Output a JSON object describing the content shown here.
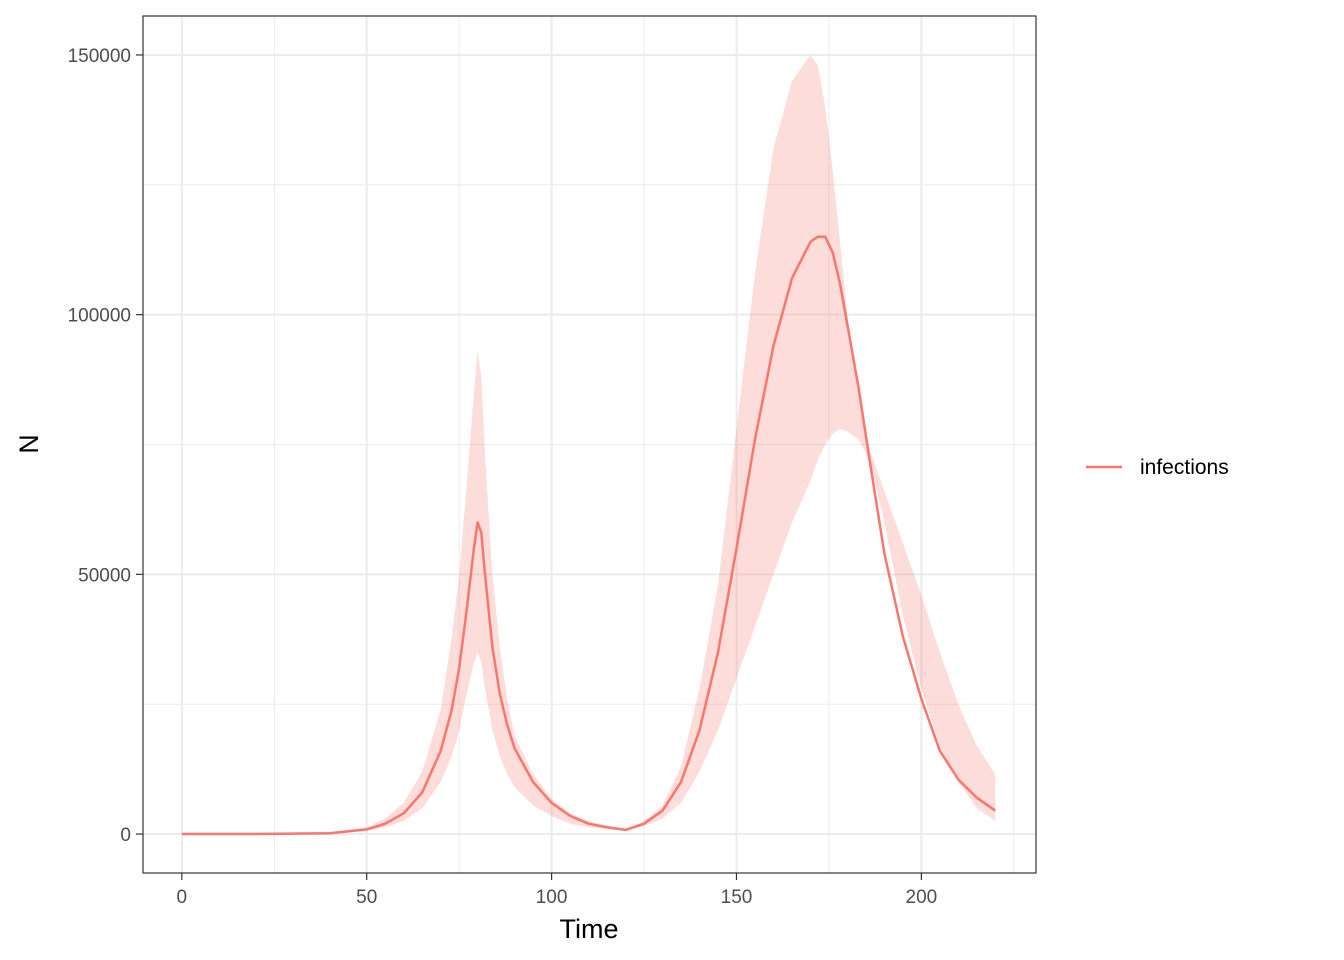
{
  "chart_data": {
    "type": "line",
    "xlabel": "Time",
    "ylabel": "N",
    "xlim": [
      -10.5,
      231
    ],
    "ylim": [
      -7500,
      157500
    ],
    "x_ticks": [
      0,
      50,
      100,
      150,
      200
    ],
    "x_tick_labels": [
      "0",
      "50",
      "100",
      "150",
      "200"
    ],
    "y_ticks": [
      0,
      50000,
      100000,
      150000
    ],
    "y_tick_labels": [
      "0",
      "50000",
      "100000",
      "150000"
    ],
    "grid": true,
    "legend_position": "right",
    "series": [
      {
        "name": "infections",
        "color": "#F8766D",
        "ribbon_color": "#F8766D",
        "x": [
          0,
          20,
          40,
          50,
          55,
          60,
          65,
          70,
          73,
          75,
          77,
          79,
          80,
          81,
          82,
          84,
          86,
          88,
          90,
          95,
          100,
          105,
          110,
          115,
          120,
          125,
          130,
          135,
          140,
          145,
          150,
          155,
          160,
          165,
          170,
          172,
          174,
          176,
          178,
          180,
          183,
          186,
          190,
          195,
          200,
          205,
          210,
          215,
          220
        ],
        "y": [
          0,
          0,
          150,
          900,
          2000,
          4000,
          8000,
          16000,
          24000,
          32000,
          43000,
          55000,
          60000,
          58000,
          50000,
          36000,
          27000,
          21000,
          16500,
          10000,
          6000,
          3500,
          2000,
          1300,
          800,
          2000,
          4500,
          10000,
          20000,
          35000,
          55000,
          76000,
          94000,
          107000,
          114000,
          115000,
          115000,
          112000,
          106000,
          98000,
          86000,
          72000,
          54000,
          38000,
          26000,
          16000,
          10500,
          7000,
          4500
        ],
        "lower": [
          0,
          0,
          100,
          600,
          1300,
          2500,
          5000,
          10000,
          15000,
          20000,
          27000,
          33000,
          35000,
          33000,
          28000,
          20000,
          15000,
          11500,
          9000,
          5500,
          3500,
          2000,
          1300,
          900,
          700,
          1500,
          3000,
          6000,
          12000,
          20000,
          30000,
          40000,
          50000,
          60000,
          68000,
          72000,
          75000,
          77000,
          78000,
          77500,
          76000,
          72000,
          60000,
          42000,
          28000,
          17000,
          10000,
          5000,
          2500
        ],
        "upper": [
          0,
          0,
          200,
          1300,
          3000,
          6000,
          12000,
          24000,
          38000,
          50000,
          67000,
          85000,
          93000,
          88000,
          73000,
          50000,
          36000,
          26000,
          19000,
          11500,
          6800,
          4000,
          2500,
          1600,
          900,
          2500,
          5500,
          13000,
          28000,
          48000,
          78000,
          108000,
          132000,
          145000,
          150000,
          148000,
          140000,
          128000,
          114000,
          100000,
          86000,
          74000,
          66000,
          56000,
          46000,
          35000,
          25000,
          17000,
          11500
        ]
      }
    ]
  }
}
